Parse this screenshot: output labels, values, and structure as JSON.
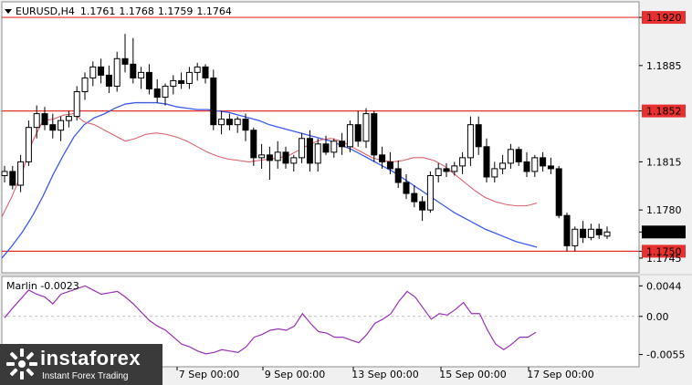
{
  "header": {
    "symbol": "EURUSD,H4",
    "open": "1.1761",
    "high": "1.1768",
    "low": "1.1759",
    "close": "1.1764"
  },
  "colors": {
    "bg": "#ffffff",
    "candle": "#000000",
    "level": "#e8302e",
    "ma_slow": "#3d5af1",
    "ma_fast": "#e06070",
    "marlin": "#9b30b8",
    "current_price_tag": "#000000"
  },
  "chart_data": [
    {
      "type": "candlestick",
      "title": "EURUSD,H4",
      "ylim": [
        1.1735,
        1.193
      ],
      "yticks": [
        "1.1920",
        "1.1885",
        "1.1852",
        "1.1815",
        "1.1780",
        "1.1764",
        "1.1750",
        "1.1745"
      ],
      "xticks": [
        "7 Sep 00:00",
        "9 Sep 00:00",
        "13 Sep 00:00",
        "15 Sep 00:00",
        "17 Sep 00:00"
      ],
      "horizontal_levels": [
        1.192,
        1.1852,
        1.175
      ],
      "current_price": 1.1764,
      "grid": false,
      "candles": [
        {
          "o": 1.1805,
          "h": 1.1812,
          "l": 1.18,
          "c": 1.1808
        },
        {
          "o": 1.1808,
          "h": 1.1812,
          "l": 1.1795,
          "c": 1.1798
        },
        {
          "o": 1.1798,
          "h": 1.182,
          "l": 1.1793,
          "c": 1.1815
        },
        {
          "o": 1.1815,
          "h": 1.1845,
          "l": 1.1812,
          "c": 1.184
        },
        {
          "o": 1.184,
          "h": 1.1856,
          "l": 1.1832,
          "c": 1.185
        },
        {
          "o": 1.185,
          "h": 1.1855,
          "l": 1.1838,
          "c": 1.1842
        },
        {
          "o": 1.1842,
          "h": 1.185,
          "l": 1.1832,
          "c": 1.1838
        },
        {
          "o": 1.1838,
          "h": 1.1848,
          "l": 1.183,
          "c": 1.1845
        },
        {
          "o": 1.1845,
          "h": 1.1852,
          "l": 1.184,
          "c": 1.1848
        },
        {
          "o": 1.1848,
          "h": 1.187,
          "l": 1.1845,
          "c": 1.1866
        },
        {
          "o": 1.1866,
          "h": 1.188,
          "l": 1.186,
          "c": 1.1876
        },
        {
          "o": 1.1876,
          "h": 1.1888,
          "l": 1.187,
          "c": 1.1884
        },
        {
          "o": 1.1884,
          "h": 1.189,
          "l": 1.1872,
          "c": 1.1878
        },
        {
          "o": 1.1878,
          "h": 1.1885,
          "l": 1.1865,
          "c": 1.187
        },
        {
          "o": 1.187,
          "h": 1.1895,
          "l": 1.1866,
          "c": 1.189
        },
        {
          "o": 1.189,
          "h": 1.1908,
          "l": 1.188,
          "c": 1.1886
        },
        {
          "o": 1.1886,
          "h": 1.1905,
          "l": 1.1872,
          "c": 1.1876
        },
        {
          "o": 1.1876,
          "h": 1.1884,
          "l": 1.1868,
          "c": 1.188
        },
        {
          "o": 1.188,
          "h": 1.1886,
          "l": 1.1864,
          "c": 1.1868
        },
        {
          "o": 1.1868,
          "h": 1.1875,
          "l": 1.1858,
          "c": 1.1862
        },
        {
          "o": 1.1862,
          "h": 1.1872,
          "l": 1.1856,
          "c": 1.187
        },
        {
          "o": 1.187,
          "h": 1.1878,
          "l": 1.1864,
          "c": 1.1874
        },
        {
          "o": 1.1874,
          "h": 1.188,
          "l": 1.1868,
          "c": 1.1872
        },
        {
          "o": 1.1872,
          "h": 1.1884,
          "l": 1.1868,
          "c": 1.188
        },
        {
          "o": 1.188,
          "h": 1.1887,
          "l": 1.1874,
          "c": 1.1884
        },
        {
          "o": 1.1884,
          "h": 1.1886,
          "l": 1.1872,
          "c": 1.1876
        },
        {
          "o": 1.1876,
          "h": 1.1882,
          "l": 1.1838,
          "c": 1.1842
        },
        {
          "o": 1.1842,
          "h": 1.1852,
          "l": 1.1835,
          "c": 1.1846
        },
        {
          "o": 1.1846,
          "h": 1.185,
          "l": 1.1838,
          "c": 1.1842
        },
        {
          "o": 1.1842,
          "h": 1.1848,
          "l": 1.1836,
          "c": 1.1846
        },
        {
          "o": 1.1846,
          "h": 1.185,
          "l": 1.183,
          "c": 1.1838
        },
        {
          "o": 1.1838,
          "h": 1.184,
          "l": 1.1812,
          "c": 1.1818
        },
        {
          "o": 1.1818,
          "h": 1.1828,
          "l": 1.181,
          "c": 1.182
        },
        {
          "o": 1.182,
          "h": 1.1826,
          "l": 1.1802,
          "c": 1.1816
        },
        {
          "o": 1.1816,
          "h": 1.183,
          "l": 1.181,
          "c": 1.1822
        },
        {
          "o": 1.1822,
          "h": 1.1826,
          "l": 1.181,
          "c": 1.1814
        },
        {
          "o": 1.1814,
          "h": 1.182,
          "l": 1.1808,
          "c": 1.1818
        },
        {
          "o": 1.1818,
          "h": 1.1836,
          "l": 1.1814,
          "c": 1.1832
        },
        {
          "o": 1.1832,
          "h": 1.1838,
          "l": 1.1808,
          "c": 1.1814
        },
        {
          "o": 1.1814,
          "h": 1.1832,
          "l": 1.1808,
          "c": 1.1828
        },
        {
          "o": 1.1828,
          "h": 1.1834,
          "l": 1.182,
          "c": 1.1822
        },
        {
          "o": 1.1822,
          "h": 1.1832,
          "l": 1.1818,
          "c": 1.183
        },
        {
          "o": 1.183,
          "h": 1.1836,
          "l": 1.182,
          "c": 1.1826
        },
        {
          "o": 1.1826,
          "h": 1.1845,
          "l": 1.1822,
          "c": 1.1842
        },
        {
          "o": 1.1842,
          "h": 1.1852,
          "l": 1.1826,
          "c": 1.183
        },
        {
          "o": 1.183,
          "h": 1.1854,
          "l": 1.1825,
          "c": 1.185
        },
        {
          "o": 1.185,
          "h": 1.1852,
          "l": 1.1815,
          "c": 1.182
        },
        {
          "o": 1.182,
          "h": 1.1826,
          "l": 1.181,
          "c": 1.1815
        },
        {
          "o": 1.1815,
          "h": 1.1822,
          "l": 1.1806,
          "c": 1.181
        },
        {
          "o": 1.181,
          "h": 1.1816,
          "l": 1.1796,
          "c": 1.18
        },
        {
          "o": 1.18,
          "h": 1.1806,
          "l": 1.1788,
          "c": 1.1792
        },
        {
          "o": 1.1792,
          "h": 1.1798,
          "l": 1.1782,
          "c": 1.1786
        },
        {
          "o": 1.1786,
          "h": 1.179,
          "l": 1.1772,
          "c": 1.178
        },
        {
          "o": 1.178,
          "h": 1.1808,
          "l": 1.1778,
          "c": 1.1805
        },
        {
          "o": 1.1805,
          "h": 1.1814,
          "l": 1.18,
          "c": 1.181
        },
        {
          "o": 1.181,
          "h": 1.1814,
          "l": 1.1804,
          "c": 1.1808
        },
        {
          "o": 1.1808,
          "h": 1.1815,
          "l": 1.1805,
          "c": 1.1812
        },
        {
          "o": 1.1812,
          "h": 1.1822,
          "l": 1.1806,
          "c": 1.1818
        },
        {
          "o": 1.1818,
          "h": 1.1848,
          "l": 1.1812,
          "c": 1.1842
        },
        {
          "o": 1.1842,
          "h": 1.1848,
          "l": 1.182,
          "c": 1.1826
        },
        {
          "o": 1.1826,
          "h": 1.1832,
          "l": 1.18,
          "c": 1.1804
        },
        {
          "o": 1.1804,
          "h": 1.1815,
          "l": 1.18,
          "c": 1.181
        },
        {
          "o": 1.181,
          "h": 1.182,
          "l": 1.1806,
          "c": 1.1814
        },
        {
          "o": 1.1814,
          "h": 1.1828,
          "l": 1.181,
          "c": 1.1824
        },
        {
          "o": 1.1824,
          "h": 1.1826,
          "l": 1.1812,
          "c": 1.1815
        },
        {
          "o": 1.1815,
          "h": 1.1822,
          "l": 1.1804,
          "c": 1.1808
        },
        {
          "o": 1.1808,
          "h": 1.182,
          "l": 1.1804,
          "c": 1.1818
        },
        {
          "o": 1.1818,
          "h": 1.1822,
          "l": 1.1808,
          "c": 1.1812
        },
        {
          "o": 1.1812,
          "h": 1.1818,
          "l": 1.1806,
          "c": 1.181
        },
        {
          "o": 1.181,
          "h": 1.1812,
          "l": 1.1774,
          "c": 1.1776
        },
        {
          "o": 1.1776,
          "h": 1.1778,
          "l": 1.175,
          "c": 1.1754
        },
        {
          "o": 1.1754,
          "h": 1.1768,
          "l": 1.175,
          "c": 1.1766
        },
        {
          "o": 1.1766,
          "h": 1.1772,
          "l": 1.1756,
          "c": 1.176
        },
        {
          "o": 1.176,
          "h": 1.177,
          "l": 1.1758,
          "c": 1.1766
        },
        {
          "o": 1.1766,
          "h": 1.177,
          "l": 1.1759,
          "c": 1.1762
        },
        {
          "o": 1.1761,
          "h": 1.1768,
          "l": 1.1759,
          "c": 1.1764
        }
      ],
      "ma_slow": [
        [
          0,
          1.1745
        ],
        [
          8,
          1.1754
        ],
        [
          16,
          1.1764
        ],
        [
          24,
          1.1776
        ],
        [
          32,
          1.179
        ],
        [
          40,
          1.1806
        ],
        [
          48,
          1.182
        ],
        [
          56,
          1.1833
        ],
        [
          64,
          1.1842
        ],
        [
          72,
          1.1847
        ],
        [
          80,
          1.185
        ],
        [
          88,
          1.1854
        ],
        [
          96,
          1.1857
        ],
        [
          104,
          1.1858
        ],
        [
          112,
          1.1858
        ],
        [
          120,
          1.1858
        ],
        [
          128,
          1.1857
        ],
        [
          136,
          1.1855
        ],
        [
          144,
          1.1854
        ],
        [
          152,
          1.1853
        ],
        [
          160,
          1.1853
        ],
        [
          168,
          1.1852
        ],
        [
          176,
          1.1851
        ],
        [
          184,
          1.1849
        ],
        [
          192,
          1.1847
        ],
        [
          200,
          1.1845
        ],
        [
          208,
          1.1842
        ],
        [
          216,
          1.184
        ],
        [
          224,
          1.1838
        ],
        [
          232,
          1.1836
        ],
        [
          240,
          1.1834
        ],
        [
          248,
          1.1832
        ],
        [
          256,
          1.183
        ],
        [
          264,
          1.1827
        ],
        [
          272,
          1.1824
        ],
        [
          280,
          1.182
        ],
        [
          288,
          1.1816
        ],
        [
          296,
          1.1812
        ],
        [
          304,
          1.1808
        ],
        [
          312,
          1.1803
        ],
        [
          320,
          1.1798
        ],
        [
          328,
          1.1793
        ],
        [
          336,
          1.1788
        ],
        [
          344,
          1.1783
        ],
        [
          352,
          1.1778
        ],
        [
          360,
          1.1774
        ],
        [
          368,
          1.177
        ],
        [
          376,
          1.1766
        ],
        [
          384,
          1.1763
        ],
        [
          392,
          1.176
        ],
        [
          400,
          1.1757
        ],
        [
          408,
          1.1755
        ],
        [
          416,
          1.1753
        ]
      ],
      "ma_fast": [
        [
          0,
          1.1775
        ],
        [
          8,
          1.179
        ],
        [
          16,
          1.1808
        ],
        [
          24,
          1.183
        ],
        [
          32,
          1.1845
        ],
        [
          40,
          1.1846
        ],
        [
          48,
          1.1849
        ],
        [
          56,
          1.185
        ],
        [
          64,
          1.1844
        ],
        [
          72,
          1.1842
        ],
        [
          80,
          1.1838
        ],
        [
          88,
          1.1834
        ],
        [
          96,
          1.183
        ],
        [
          104,
          1.1832
        ],
        [
          112,
          1.1835
        ],
        [
          120,
          1.1836
        ],
        [
          128,
          1.1835
        ],
        [
          136,
          1.1833
        ],
        [
          144,
          1.183
        ],
        [
          152,
          1.1826
        ],
        [
          160,
          1.1822
        ],
        [
          168,
          1.1819
        ],
        [
          176,
          1.1817
        ],
        [
          184,
          1.1816
        ],
        [
          192,
          1.1815
        ],
        [
          200,
          1.1816
        ],
        [
          208,
          1.1817
        ],
        [
          216,
          1.1818
        ],
        [
          224,
          1.182
        ],
        [
          232,
          1.1824
        ],
        [
          240,
          1.1828
        ],
        [
          248,
          1.1831
        ],
        [
          256,
          1.1832
        ],
        [
          264,
          1.183
        ],
        [
          272,
          1.1826
        ],
        [
          280,
          1.1822
        ],
        [
          288,
          1.1818
        ],
        [
          296,
          1.1816
        ],
        [
          304,
          1.1815
        ],
        [
          312,
          1.1816
        ],
        [
          320,
          1.1818
        ],
        [
          328,
          1.1818
        ],
        [
          336,
          1.1816
        ],
        [
          344,
          1.1812
        ],
        [
          352,
          1.1806
        ],
        [
          360,
          1.18
        ],
        [
          368,
          1.1794
        ],
        [
          376,
          1.1789
        ],
        [
          384,
          1.1786
        ],
        [
          392,
          1.1784
        ],
        [
          400,
          1.1783
        ],
        [
          408,
          1.1783
        ],
        [
          416,
          1.1785
        ]
      ]
    },
    {
      "type": "line",
      "title": "Marlin -0.0023",
      "ylim": [
        -0.007,
        0.0055
      ],
      "yticks": [
        "0.0044",
        "0.00",
        "-0.0055"
      ],
      "zero_line": true,
      "series": [
        {
          "name": "Marlin",
          "values": [
            -0.0002,
            0.0012,
            0.0025,
            0.0038,
            0.0032,
            0.0028,
            0.0018,
            0.0032,
            0.0036,
            0.004,
            0.0044,
            0.0038,
            0.0032,
            0.0034,
            0.0036,
            0.0028,
            0.0018,
            0.0006,
            -0.0006,
            -0.0014,
            -0.002,
            -0.003,
            -0.004,
            -0.0044,
            -0.005,
            -0.0054,
            -0.0052,
            -0.0048,
            -0.005,
            -0.0052,
            -0.0044,
            -0.003,
            -0.0026,
            -0.002,
            -0.0018,
            -0.002,
            -0.0014,
            0.0004,
            -0.001,
            -0.0022,
            -0.0024,
            -0.003,
            -0.003,
            -0.0034,
            -0.0038,
            -0.0026,
            -0.001,
            -0.0004,
            0.0004,
            0.0022,
            0.0036,
            0.0028,
            0.0012,
            -0.0004,
            0.0004,
            0.0002,
            0.001,
            0.002,
            0.0004,
            0.0004,
            -0.002,
            -0.004,
            -0.0048,
            -0.004,
            -0.003,
            -0.003,
            -0.0023
          ]
        }
      ]
    }
  ],
  "watermark": {
    "name": "instaforex",
    "tagline": "Instant Forex Trading"
  }
}
